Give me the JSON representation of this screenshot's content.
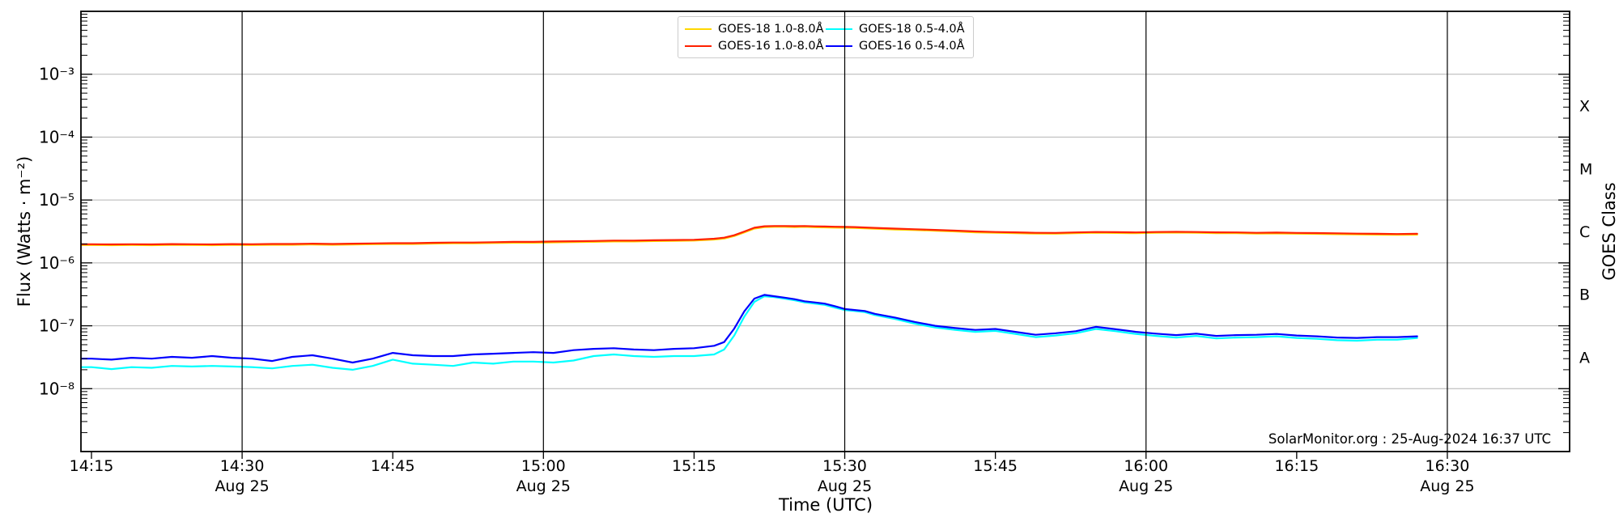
{
  "chart_data": {
    "type": "line",
    "source_text": "SolarMonitor.org : 25-Aug-2024 16:37 UTC",
    "xlabel": "Time (UTC)",
    "ylabel": "Flux (Watts · m⁻²)",
    "ylabel_right": "GOES Class",
    "x_axis": {
      "unit": "minutes after 14:15 UTC",
      "xlim_minutes": [
        -1.05,
        147.2
      ],
      "ticks": [
        {
          "label": "14:15",
          "minute": 0,
          "date_label": "",
          "dateline": false
        },
        {
          "label": "14:30",
          "minute": 15,
          "date_label": "Aug 25",
          "dateline": true
        },
        {
          "label": "14:45",
          "minute": 30,
          "date_label": "",
          "dateline": false
        },
        {
          "label": "15:00",
          "minute": 45,
          "date_label": "Aug 25",
          "dateline": true
        },
        {
          "label": "15:15",
          "minute": 60,
          "date_label": "",
          "dateline": false
        },
        {
          "label": "15:30",
          "minute": 75,
          "date_label": "Aug 25",
          "dateline": true
        },
        {
          "label": "15:45",
          "minute": 90,
          "date_label": "",
          "dateline": false
        },
        {
          "label": "16:00",
          "minute": 105,
          "date_label": "Aug 25",
          "dateline": true
        },
        {
          "label": "16:15",
          "minute": 120,
          "date_label": "",
          "dateline": false
        },
        {
          "label": "16:30",
          "minute": 135,
          "date_label": "Aug 25",
          "dateline": true
        }
      ]
    },
    "y_axis": {
      "scale": "log",
      "ylim": [
        1e-09,
        0.01
      ],
      "ticks": [
        {
          "label": "10⁻³",
          "exponent": -3
        },
        {
          "label": "10⁻⁴",
          "exponent": -4
        },
        {
          "label": "10⁻⁵",
          "exponent": -5
        },
        {
          "label": "10⁻⁶",
          "exponent": -6
        },
        {
          "label": "10⁻⁷",
          "exponent": -7
        },
        {
          "label": "10⁻⁸",
          "exponent": -8
        }
      ],
      "grid_color": "#b4b4b4"
    },
    "y_axis_right": {
      "ticks": [
        {
          "label": "X",
          "mid_exponent": -3.5
        },
        {
          "label": "M",
          "mid_exponent": -4.5
        },
        {
          "label": "C",
          "mid_exponent": -5.5
        },
        {
          "label": "B",
          "mid_exponent": -6.5
        },
        {
          "label": "A",
          "mid_exponent": -7.5
        }
      ]
    },
    "dateline_color": "#000000",
    "t_minutes": [
      -1,
      0,
      2,
      4,
      6,
      8,
      10,
      12,
      14,
      16,
      18,
      20,
      22,
      24,
      26,
      28,
      30,
      32,
      34,
      36,
      38,
      40,
      42,
      44,
      46,
      48,
      50,
      52,
      54,
      56,
      58,
      60,
      62,
      63,
      64,
      65,
      66,
      67,
      68,
      69,
      70,
      71,
      72,
      73,
      74,
      75,
      76,
      77,
      78,
      80,
      82,
      84,
      86,
      88,
      90,
      92,
      94,
      96,
      98,
      100,
      102,
      104,
      106,
      108,
      110,
      112,
      114,
      116,
      118,
      120,
      122,
      124,
      126,
      128,
      130,
      132
    ],
    "series": [
      {
        "name": "GOES-18 1.0-8.0Å",
        "color": "#ffd700",
        "flux": [
          1.92e-06,
          1.92e-06,
          1.91e-06,
          1.92e-06,
          1.91e-06,
          1.93e-06,
          1.92e-06,
          1.91e-06,
          1.93e-06,
          1.92e-06,
          1.94e-06,
          1.94e-06,
          1.96e-06,
          1.94e-06,
          1.96e-06,
          1.98e-06,
          2e-06,
          2e-06,
          2.03e-06,
          2.05e-06,
          2.05e-06,
          2.07e-06,
          2.09e-06,
          2.09e-06,
          2.12e-06,
          2.14e-06,
          2.16e-06,
          2.19e-06,
          2.19e-06,
          2.22e-06,
          2.24e-06,
          2.26e-06,
          2.35e-06,
          2.44e-06,
          2.67e-06,
          3.05e-06,
          3.51e-06,
          3.7e-06,
          3.74e-06,
          3.74e-06,
          3.71e-06,
          3.74e-06,
          3.69e-06,
          3.67e-06,
          3.64e-06,
          3.62e-06,
          3.6e-06,
          3.55e-06,
          3.49e-06,
          3.4e-06,
          3.33e-06,
          3.25e-06,
          3.16e-06,
          3.06e-06,
          3.01e-06,
          2.97e-06,
          2.92e-06,
          2.91e-06,
          2.96e-06,
          3.01e-06,
          2.99e-06,
          2.96e-06,
          3.01e-06,
          3.03e-06,
          3.01e-06,
          2.97e-06,
          2.96e-06,
          2.92e-06,
          2.94e-06,
          2.91e-06,
          2.89e-06,
          2.86e-06,
          2.83e-06,
          2.81e-06,
          2.79e-06,
          2.81e-06
        ]
      },
      {
        "name": "GOES-16 1.0-8.0Å",
        "color": "#ff2000",
        "flux": [
          1.98e-06,
          1.98e-06,
          1.97e-06,
          1.98e-06,
          1.97e-06,
          1.99e-06,
          1.98e-06,
          1.97e-06,
          1.99e-06,
          1.98e-06,
          2e-06,
          2e-06,
          2.02e-06,
          2e-06,
          2.02e-06,
          2.04e-06,
          2.06e-06,
          2.06e-06,
          2.09e-06,
          2.11e-06,
          2.11e-06,
          2.13e-06,
          2.16e-06,
          2.16e-06,
          2.19e-06,
          2.21e-06,
          2.23e-06,
          2.26e-06,
          2.26e-06,
          2.29e-06,
          2.31e-06,
          2.33e-06,
          2.42e-06,
          2.52e-06,
          2.75e-06,
          3.15e-06,
          3.62e-06,
          3.82e-06,
          3.86e-06,
          3.86e-06,
          3.83e-06,
          3.86e-06,
          3.81e-06,
          3.79e-06,
          3.76e-06,
          3.73e-06,
          3.71e-06,
          3.66e-06,
          3.6e-06,
          3.51e-06,
          3.43e-06,
          3.35e-06,
          3.26e-06,
          3.16e-06,
          3.1e-06,
          3.06e-06,
          3.01e-06,
          3e-06,
          3.05e-06,
          3.1e-06,
          3.08e-06,
          3.05e-06,
          3.1e-06,
          3.12e-06,
          3.1e-06,
          3.06e-06,
          3.05e-06,
          3.01e-06,
          3.03e-06,
          3e-06,
          2.98e-06,
          2.95e-06,
          2.92e-06,
          2.9e-06,
          2.88e-06,
          2.9e-06
        ]
      },
      {
        "name": "GOES-18 0.5-4.0Å",
        "color": "#00ffff",
        "flux": [
          2.2e-08,
          2.2e-08,
          2.05e-08,
          2.2e-08,
          2.15e-08,
          2.3e-08,
          2.25e-08,
          2.3e-08,
          2.25e-08,
          2.2e-08,
          2.1e-08,
          2.3e-08,
          2.4e-08,
          2.15e-08,
          2e-08,
          2.3e-08,
          2.9e-08,
          2.5e-08,
          2.4e-08,
          2.3e-08,
          2.6e-08,
          2.5e-08,
          2.7e-08,
          2.7e-08,
          2.6e-08,
          2.8e-08,
          3.3e-08,
          3.5e-08,
          3.3e-08,
          3.2e-08,
          3.3e-08,
          3.3e-08,
          3.5e-08,
          4.2e-08,
          7e-08,
          1.4e-07,
          2.4e-07,
          2.95e-07,
          2.85e-07,
          2.7e-07,
          2.55e-07,
          2.35e-07,
          2.25e-07,
          2.15e-07,
          1.95e-07,
          1.78e-07,
          1.72e-07,
          1.65e-07,
          1.48e-07,
          1.28e-07,
          1.08e-07,
          9.4e-08,
          8.6e-08,
          8e-08,
          8.3e-08,
          7.4e-08,
          6.6e-08,
          7e-08,
          7.6e-08,
          8.9e-08,
          8.2e-08,
          7.4e-08,
          6.9e-08,
          6.5e-08,
          6.9e-08,
          6.3e-08,
          6.5e-08,
          6.6e-08,
          6.8e-08,
          6.4e-08,
          6.2e-08,
          5.9e-08,
          5.8e-08,
          6e-08,
          6e-08,
          6.4e-08
        ]
      },
      {
        "name": "GOES-16 0.5-4.0Å",
        "color": "#0000ff",
        "flux": [
          3e-08,
          3e-08,
          2.9e-08,
          3.1e-08,
          3e-08,
          3.2e-08,
          3.1e-08,
          3.3e-08,
          3.1e-08,
          3e-08,
          2.75e-08,
          3.2e-08,
          3.4e-08,
          3e-08,
          2.6e-08,
          3e-08,
          3.7e-08,
          3.4e-08,
          3.3e-08,
          3.3e-08,
          3.5e-08,
          3.6e-08,
          3.7e-08,
          3.8e-08,
          3.7e-08,
          4.1e-08,
          4.3e-08,
          4.4e-08,
          4.2e-08,
          4.1e-08,
          4.3e-08,
          4.4e-08,
          4.8e-08,
          5.5e-08,
          9e-08,
          1.7e-07,
          2.7e-07,
          3.1e-07,
          2.95e-07,
          2.8e-07,
          2.65e-07,
          2.45e-07,
          2.35e-07,
          2.25e-07,
          2.05e-07,
          1.85e-07,
          1.78e-07,
          1.72e-07,
          1.55e-07,
          1.35e-07,
          1.15e-07,
          1e-07,
          9.2e-08,
          8.6e-08,
          8.9e-08,
          8e-08,
          7.2e-08,
          7.6e-08,
          8.2e-08,
          9.6e-08,
          8.8e-08,
          8e-08,
          7.5e-08,
          7.1e-08,
          7.5e-08,
          6.9e-08,
          7.1e-08,
          7.2e-08,
          7.4e-08,
          7e-08,
          6.8e-08,
          6.5e-08,
          6.4e-08,
          6.6e-08,
          6.6e-08,
          6.8e-08
        ]
      }
    ],
    "legend": {
      "position": "upper center",
      "columns": 2
    }
  }
}
